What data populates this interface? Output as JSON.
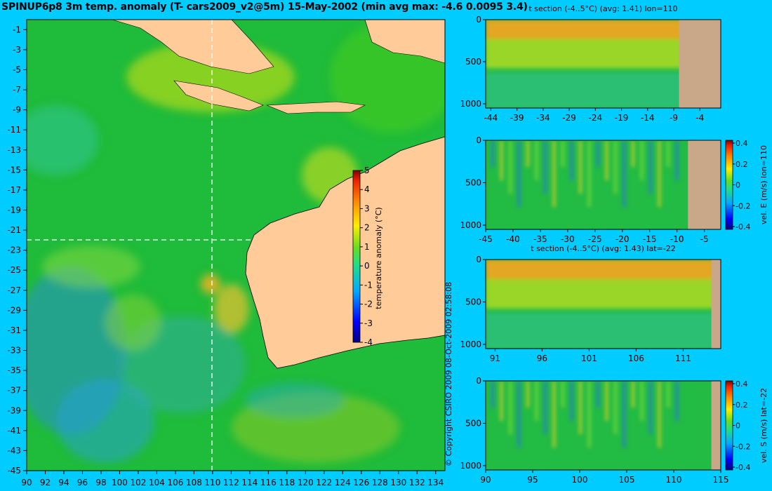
{
  "title": "SPINUP6p8 3m temp. anomaly (T- cars2009_v2@5m) 15-May-2002 (min avg max: -4.6 0.0095 3.4)",
  "copyright": "© Copyright CSIRO 2009   08-Oct-2009 02:58:08",
  "colors": {
    "background": "#00ccff",
    "land": "#ffcc99",
    "section_land": "#c8a889",
    "ocean": "#22bb33",
    "crosshair": "#ffffff"
  },
  "chart_data": [
    {
      "id": "map",
      "type": "heatmap",
      "title": "",
      "xlabel": "",
      "ylabel": "",
      "x_ticks": [
        "90",
        "92",
        "94",
        "96",
        "98",
        "100",
        "102",
        "104",
        "106",
        "108",
        "110",
        "112",
        "114",
        "116",
        "118",
        "120",
        "122",
        "124",
        "126",
        "128",
        "130",
        "132",
        "134"
      ],
      "y_ticks": [
        "-1",
        "-3",
        "-5",
        "-7",
        "-9",
        "-11",
        "-13",
        "-15",
        "-17",
        "-19",
        "-21",
        "-23",
        "-25",
        "-27",
        "-29",
        "-31",
        "-33",
        "-35",
        "-37",
        "-39",
        "-41",
        "-43",
        "-45"
      ],
      "xlim": [
        90,
        135
      ],
      "ylim": [
        -45,
        0
      ],
      "crosshair": {
        "lon": 110,
        "lat": -22
      },
      "colorbar": {
        "label": "temperature anomaly (°C)",
        "ticks": [
          "5",
          "4",
          "3",
          "2",
          "1",
          "0",
          "-1",
          "-2",
          "-3",
          "-4"
        ],
        "range": [
          -4,
          5
        ]
      }
    },
    {
      "id": "t-section-lon110",
      "type": "heatmap",
      "title": "t section (-4..5°C) (avg: 1.41) lon=110",
      "x_ticks": [
        "-44",
        "-39",
        "-34",
        "-29",
        "-24",
        "-19",
        "-14",
        "-9",
        "-4"
      ],
      "y_ticks": [
        "0",
        "500",
        "1000"
      ],
      "xlim": [
        -45,
        0
      ],
      "ylim": [
        1050,
        0
      ],
      "land_from_x": -8
    },
    {
      "id": "vel-e-lon110",
      "type": "heatmap",
      "title": "",
      "colorbar_label": "vel. E (m/s) lon=110",
      "colorbar_ticks": [
        "0.4",
        "0.2",
        "0",
        "-0.2",
        "-0.4"
      ],
      "x_ticks": [
        "-45",
        "-40",
        "-35",
        "-30",
        "-25",
        "-20",
        "-15",
        "-10",
        "-5"
      ],
      "y_ticks": [
        "0",
        "500",
        "1000"
      ],
      "xlim": [
        -45,
        -2
      ],
      "ylim": [
        1050,
        0
      ],
      "land_from_x": -8
    },
    {
      "id": "t-section-lat-22",
      "type": "heatmap",
      "title": "t section (-4..5°C) (avg: 1.43) lat=-22",
      "x_ticks": [
        "91",
        "96",
        "101",
        "106",
        "111"
      ],
      "y_ticks": [
        "0",
        "500",
        "1000"
      ],
      "xlim": [
        90,
        115
      ],
      "ylim": [
        1050,
        0
      ],
      "land_from_x": 114
    },
    {
      "id": "vel-s-lat-22",
      "type": "heatmap",
      "title": "",
      "colorbar_label": "vel. S (m/s) lat=-22",
      "colorbar_ticks": [
        "0.4",
        "0.2",
        "0",
        "-0.2",
        "-0.4"
      ],
      "x_ticks": [
        "90",
        "95",
        "100",
        "105",
        "110",
        "115"
      ],
      "y_ticks": [
        "0",
        "500",
        "1000"
      ],
      "xlim": [
        90,
        115
      ],
      "ylim": [
        1050,
        0
      ],
      "land_from_x": 114
    }
  ]
}
